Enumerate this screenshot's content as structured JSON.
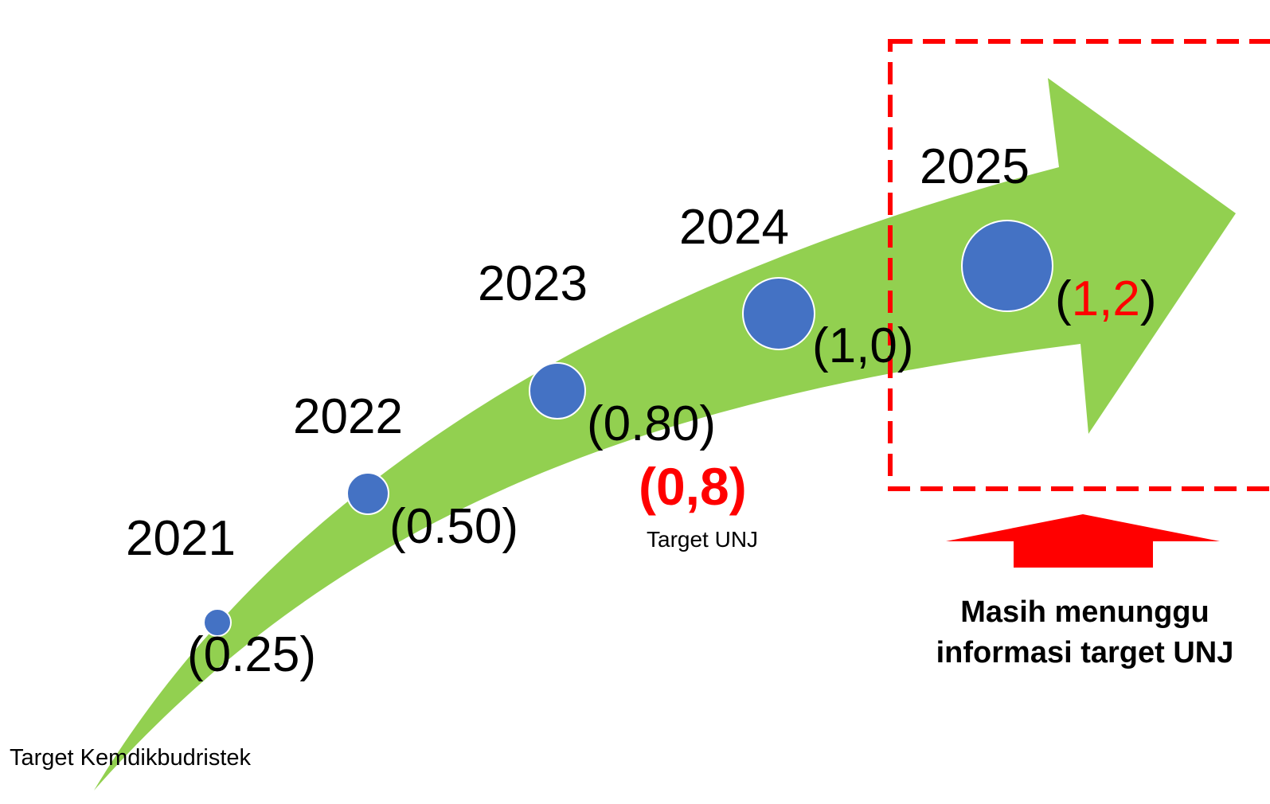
{
  "colors": {
    "arrow": "#92d050",
    "marker_fill": "#4472c4",
    "marker_stroke": "#ffffff",
    "highlight_red": "#ff0000",
    "text": "#000000"
  },
  "milestones": [
    {
      "year": "2021",
      "value": "(0.25)",
      "level": 0.25
    },
    {
      "year": "2022",
      "value": "(0.50)",
      "level": 0.5
    },
    {
      "year": "2023",
      "value": "(0.80)",
      "level": 0.8
    },
    {
      "year": "2024",
      "value": "(1,0)",
      "level": 1.0
    },
    {
      "year": "2025",
      "value_open": "(",
      "value_num": "1,2",
      "value_close": ")",
      "level": 1.2
    }
  ],
  "unj_target": {
    "value": "(0,8)",
    "label": "Target UNJ"
  },
  "kemdik_label": "Target Kemdikbudristek",
  "note": {
    "line1": "Masih menunggu",
    "line2": "informasi target UNJ"
  }
}
